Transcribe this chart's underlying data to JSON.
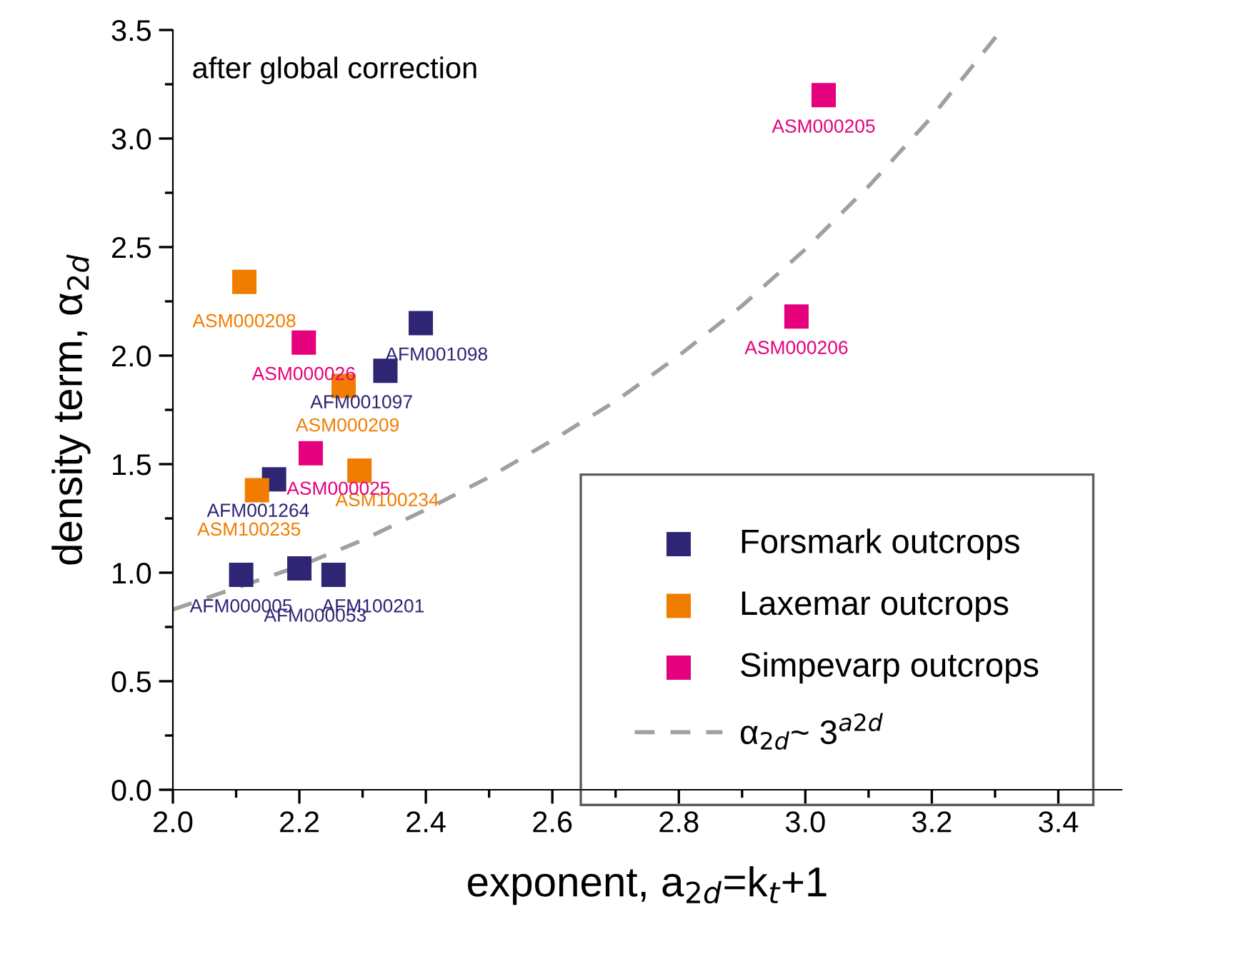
{
  "chart_data": {
    "type": "scatter",
    "xlabel": "exponent, a$_{2d}$=k$_{t}$+1",
    "ylabel": "density term, α$_{2d}$",
    "annotations": [
      "after global correction"
    ],
    "marker": "square",
    "legend": "bottom right",
    "grid": false,
    "xlim": [
      2.0,
      3.5
    ],
    "ylim": [
      0.0,
      3.5
    ],
    "xticks": [
      {
        "value": 2.0,
        "label": "2.0"
      },
      2.2,
      2.4,
      2.6,
      2.8,
      {
        "value": 3.0,
        "label": "3.0"
      },
      3.2,
      3.4,
      {
        "value": 2.1,
        "label": null
      },
      {
        "value": 2.3,
        "label": null
      },
      {
        "value": 2.5,
        "label": null
      },
      {
        "value": 2.7,
        "label": null
      },
      {
        "value": 2.9,
        "label": null
      },
      {
        "value": 3.1,
        "label": null
      },
      {
        "value": 3.3,
        "label": null
      }
    ],
    "yticks": [
      {
        "value": 0.0,
        "label": "0.0"
      },
      0.5,
      {
        "value": 1.0,
        "label": "1.0"
      },
      1.5,
      {
        "value": 2.0,
        "label": "2.0"
      },
      2.5,
      {
        "value": 3.0,
        "label": "3.0"
      },
      3.5,
      {
        "value": 0.25,
        "label": null
      },
      {
        "value": 0.75,
        "label": null
      },
      {
        "value": 1.25,
        "label": null
      },
      {
        "value": 1.75,
        "label": null
      },
      {
        "value": 2.25,
        "label": null
      },
      {
        "value": 2.75,
        "label": null
      },
      {
        "value": 3.25,
        "label": null
      }
    ],
    "series": [
      {
        "name": "Forsmark outcrops",
        "color": "#2e2574",
        "x": [
          2.108,
          2.2,
          2.254,
          2.16,
          2.336,
          2.392
        ],
        "values": [
          0.99,
          1.02,
          0.99,
          1.43,
          1.93,
          2.15
        ],
        "value_labels": [
          "AFM000005",
          "AFM000053",
          "AFM100201",
          "AFM001264",
          "AFM001097",
          "AFM001098"
        ]
      },
      {
        "name": "Laxemar outcrops",
        "color": "#f07d00",
        "x": [
          2.113,
          2.27,
          2.295,
          2.133
        ],
        "values": [
          2.34,
          1.86,
          1.47,
          1.38
        ],
        "value_labels": [
          "ASM000208",
          "ASM000209",
          "ASM100234",
          "ASM100235"
        ]
      },
      {
        "name": "Simpevarp outcrops",
        "color": "#e5007d",
        "x": [
          2.207,
          2.218,
          3.029,
          2.986
        ],
        "values": [
          2.06,
          1.55,
          3.2,
          2.18
        ],
        "value_labels": [
          "ASM000026",
          "ASM000025",
          "ASM000205",
          "ASM000206"
        ]
      },
      {
        "name": "α$_{2d}$~ 3$^{a2d}$",
        "type": "line",
        "line_style": "dashed",
        "marker": "none",
        "color": "#a0a0a0",
        "x": [
          2.0,
          2.1,
          2.2,
          2.3,
          2.4,
          2.5,
          2.6,
          2.7,
          2.8,
          2.9,
          3.0,
          3.1,
          3.2,
          3.31
        ],
        "values": [
          0.83,
          0.93,
          1.03,
          1.15,
          1.29,
          1.44,
          1.61,
          1.79,
          2.0,
          2.23,
          2.49,
          2.78,
          3.1,
          3.5
        ]
      }
    ]
  }
}
